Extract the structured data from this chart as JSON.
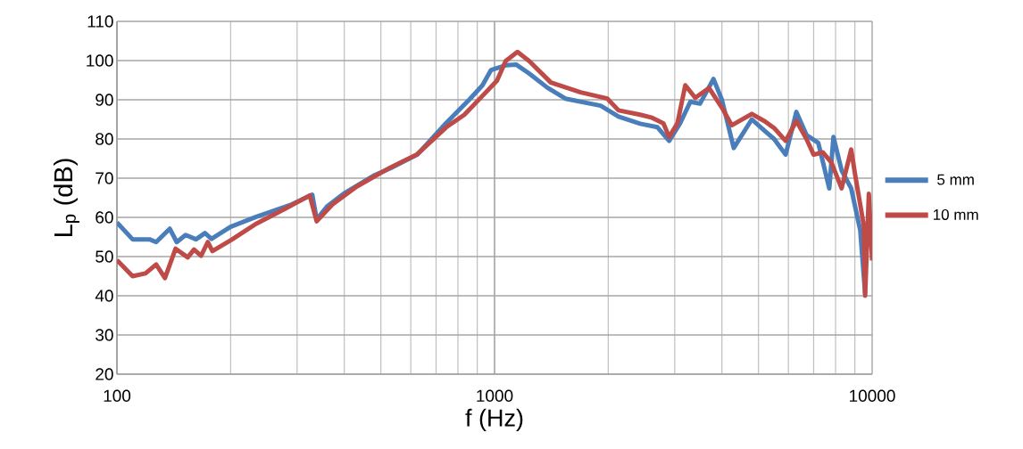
{
  "chart_data": {
    "type": "line",
    "xlabel": "f (Hz)",
    "ylabel": "L$_{p}$ (dB)",
    "log": "x",
    "grid": true,
    "legend": "right",
    "line_style": "solid",
    "marker": "none",
    "xlim": [
      100,
      10000
    ],
    "xticks": [
      100,
      1000,
      10000
    ],
    "ylim": [
      20,
      110
    ],
    "yticks": [
      20,
      30,
      40,
      50,
      60,
      70,
      80,
      90,
      100,
      110
    ],
    "series": [
      {
        "name": "5 mm",
        "color": "#4a7ebb",
        "x": [
          100,
          110,
          122,
          127,
          138,
          144,
          152,
          162,
          171,
          178,
          200,
          233,
          290,
          329,
          338,
          360,
          402,
          482,
          529,
          624,
          745,
          862,
          929,
          979,
          1070,
          1140,
          1235,
          1380,
          1540,
          1910,
          2130,
          2430,
          2700,
          2900,
          3100,
          3300,
          3500,
          3800,
          4000,
          4300,
          4800,
          5200,
          5500,
          5900,
          6300,
          6700,
          7200,
          7700,
          7900,
          8300,
          8800,
          9300,
          9580
        ],
        "values": [
          58.7,
          54.4,
          54.4,
          53.7,
          57.1,
          53.7,
          55.5,
          54.4,
          56,
          54.5,
          57.6,
          60.1,
          63.3,
          65.8,
          59.5,
          62.8,
          66.3,
          70.8,
          72.5,
          76,
          84.1,
          90.3,
          93.7,
          97.6,
          98.8,
          99,
          96.7,
          93.1,
          90.3,
          88.5,
          85.7,
          83.9,
          83,
          79.5,
          84,
          89.5,
          89,
          95.3,
          90,
          77.7,
          85,
          82,
          80,
          76,
          86.9,
          81,
          79,
          67.4,
          80.5,
          72,
          67.4,
          56.7,
          40.6
        ]
      },
      {
        "name": "10 mm",
        "color": "#be4b48",
        "x": [
          100,
          110,
          119,
          127,
          134,
          143,
          154,
          160,
          167,
          174,
          179,
          202,
          233,
          279,
          324,
          338,
          372,
          432,
          529,
          624,
          745,
          832,
          929,
          1015,
          1070,
          1150,
          1235,
          1410,
          1690,
          1990,
          2130,
          2430,
          2600,
          2800,
          2900,
          3050,
          3200,
          3400,
          3700,
          4000,
          4250,
          4800,
          5200,
          5500,
          5900,
          6300,
          6700,
          7000,
          7400,
          7800,
          8300,
          8800,
          9000,
          9500,
          9580,
          9800,
          10000
        ],
        "values": [
          49.1,
          45,
          45.7,
          48,
          44.5,
          52,
          49.8,
          51.8,
          50.2,
          53.7,
          51.4,
          54.4,
          58.3,
          62.2,
          65.6,
          59,
          63.3,
          67.9,
          72.7,
          76.1,
          83,
          86.2,
          91,
          94.9,
          99.9,
          102.2,
          99.9,
          94.4,
          91.9,
          90.3,
          87.3,
          86.2,
          85.5,
          84,
          80.5,
          84,
          93.7,
          90.5,
          93,
          88,
          83.5,
          86.4,
          84.5,
          82.8,
          79.5,
          84.6,
          80,
          76,
          76.6,
          74,
          67.4,
          77.3,
          71.3,
          58,
          40,
          66,
          49
        ]
      }
    ]
  }
}
